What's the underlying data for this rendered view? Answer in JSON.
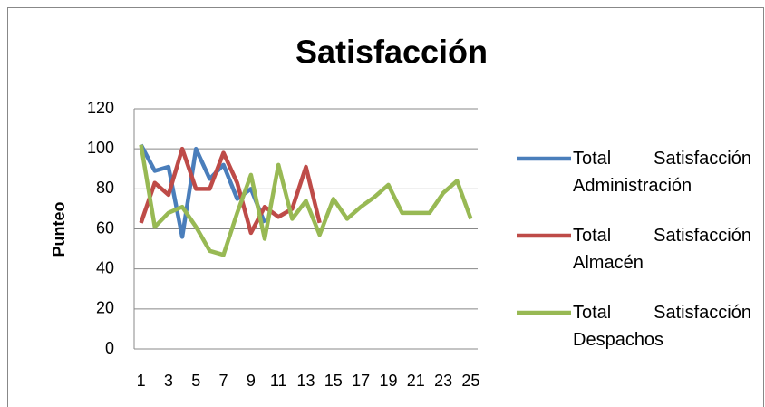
{
  "chart_data": {
    "type": "line",
    "title": "Satisfacción",
    "y_label": "Punteo",
    "categories": [
      "1",
      null,
      "3",
      null,
      "5",
      null,
      "7",
      null,
      "9",
      null,
      "11",
      null,
      "13",
      null,
      "15",
      null,
      "17",
      null,
      "19",
      null,
      "21",
      null,
      "23",
      null,
      "25"
    ],
    "series": [
      {
        "name": "Total Satisfacción Administración",
        "color": "#4a7ebb",
        "values": [
          102,
          89,
          91,
          56,
          100,
          85,
          92,
          75,
          80,
          63,
          null,
          null,
          null,
          null,
          null,
          null,
          null,
          null,
          null,
          null,
          null,
          null,
          null,
          null,
          null
        ]
      },
      {
        "name": "Total Satisfacción Almacén",
        "color": "#be4b48",
        "values": [
          63,
          83,
          77,
          100,
          80,
          80,
          98,
          83,
          58,
          71,
          66,
          70,
          91,
          63,
          null,
          null,
          null,
          null,
          null,
          null,
          null,
          null,
          null,
          null,
          null
        ]
      },
      {
        "name": "Total Satisfacción Despachos",
        "color": "#98b954",
        "values": [
          102,
          61,
          68,
          71,
          61,
          49,
          47,
          68,
          87,
          55,
          92,
          65,
          74,
          57,
          75,
          65,
          71,
          76,
          82,
          68,
          68,
          68,
          78,
          84,
          65
        ]
      }
    ],
    "ylim": [
      0,
      120
    ],
    "yticks": [
      0,
      20,
      40,
      60,
      80,
      100,
      120
    ],
    "grid": true,
    "legend": "right"
  }
}
